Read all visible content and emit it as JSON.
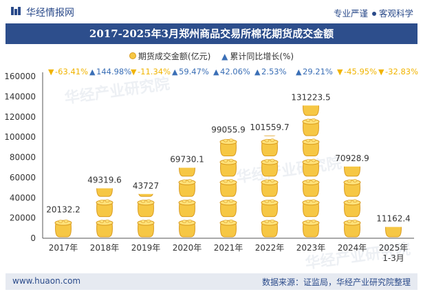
{
  "header": {
    "brand": "华经情报网",
    "tagline_left": "专业严谨",
    "tagline_right": "客观科学"
  },
  "title": "2017-2025年3月郑州商品交易所棉花期货成交金额",
  "legend": {
    "series1": "期货成交金额(亿元)",
    "series2": "累计同比增长(%)"
  },
  "watermark": "华经产业研究院",
  "chart_data": {
    "type": "bar",
    "title": "2017-2025年3月郑州商品交易所棉花期货成交金额",
    "categories": [
      "2017年",
      "2018年",
      "2019年",
      "2020年",
      "2021年",
      "2022年",
      "2023年",
      "2024年",
      "2025年 1-3月"
    ],
    "category_lines": [
      [
        "2017年"
      ],
      [
        "2018年"
      ],
      [
        "2019年"
      ],
      [
        "2020年"
      ],
      [
        "2021年"
      ],
      [
        "2022年"
      ],
      [
        "2023年"
      ],
      [
        "2024年"
      ],
      [
        "2025年",
        "1-3月"
      ]
    ],
    "series": [
      {
        "name": "期货成交金额(亿元)",
        "values": [
          20132.2,
          49319.6,
          43727,
          69730.1,
          99055.9,
          101559.7,
          131223.5,
          70928.9,
          11162.4
        ],
        "labels": [
          "20132.2",
          "49319.6",
          "43727",
          "69730.1",
          "99055.9",
          "101559.7",
          "131223.5",
          "70928.9",
          "11162.4"
        ]
      },
      {
        "name": "累计同比增长(%)",
        "values": [
          -63.41,
          144.98,
          -11.34,
          59.47,
          42.06,
          2.53,
          29.21,
          -45.95,
          -32.83
        ],
        "labels": [
          "-63.41%",
          "144.98%",
          "-11.34%",
          "59.47%",
          "42.06%",
          "2.53%",
          "29.21%",
          "-45.95%",
          "-32.83%"
        ]
      }
    ],
    "ylim": [
      0,
      160000
    ],
    "yticks": [
      "0",
      "20000",
      "40000",
      "60000",
      "80000",
      "100000",
      "120000",
      "140000",
      "160000"
    ],
    "unit_per_icon": 20000,
    "xlabel": "",
    "ylabel": ""
  },
  "colors": {
    "coin": "#f6c744",
    "coin_edge": "#d99b1f",
    "up": "#3b6fb6",
    "down": "#f1b400",
    "title_bg": "#2d4e8c",
    "footer_bg": "#e6eaf1"
  },
  "footer": {
    "website": "www.huaon.com",
    "source": "数据来源：证监局，华经产业研究院整理"
  }
}
